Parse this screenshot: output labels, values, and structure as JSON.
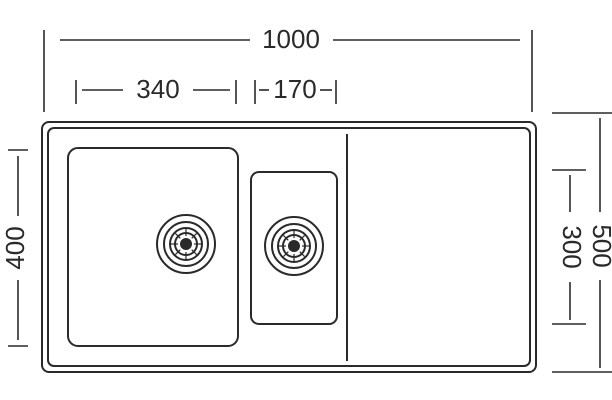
{
  "dimensions": {
    "overall_width": "1000",
    "large_bowl_width": "340",
    "small_bowl_width": "170",
    "overall_depth": "500",
    "bowl_depth": "400",
    "small_bowl_depth": "300"
  },
  "colors": {
    "line": "#2a2a2a",
    "background": "#ffffff"
  }
}
